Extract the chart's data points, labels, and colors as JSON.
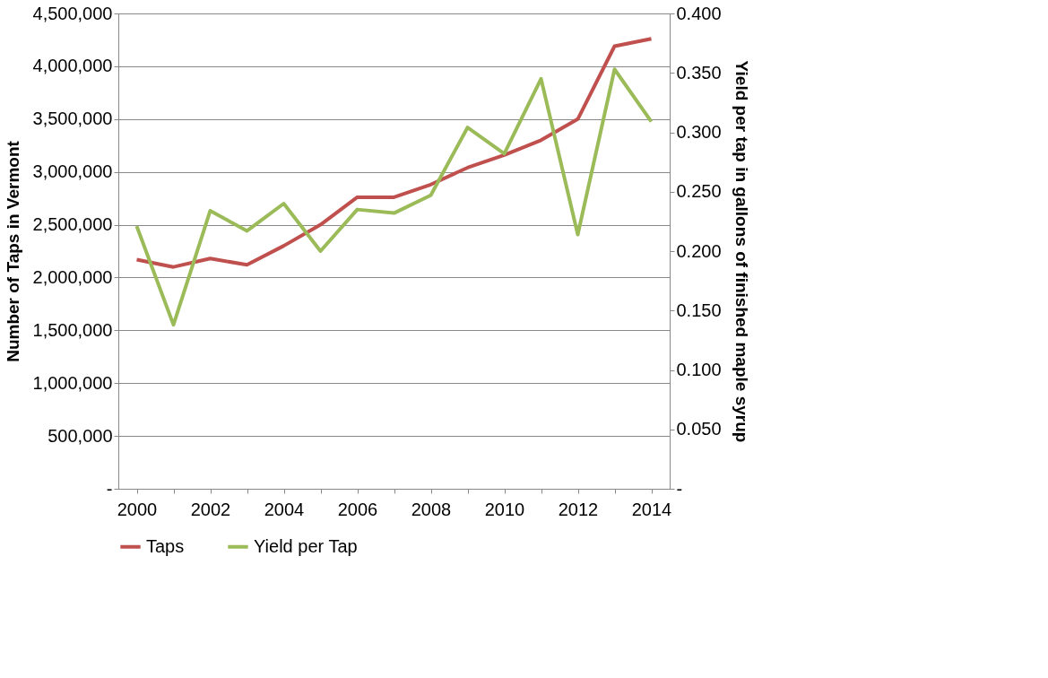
{
  "chart_data": {
    "type": "line",
    "categories": [
      "2000",
      null,
      "2002",
      null,
      "2004",
      null,
      "2006",
      null,
      "2008",
      null,
      "2010",
      null,
      "2012",
      null,
      "2014"
    ],
    "ylabel": "Number of Taps in Vermont",
    "y2label": "Yield per tap in gallons of finished maple syrup",
    "series": [
      {
        "name": "Taps",
        "color": "#c0504d",
        "values": [
          2170000,
          2100000,
          2180000,
          2120000,
          2300000,
          2500000,
          2760000,
          2760000,
          2880000,
          3040000,
          3160000,
          3300000,
          3500000,
          4190000,
          4260000
        ]
      },
      {
        "name": "Yield per Tap",
        "color": "#9bbb59",
        "axis": "y2",
        "values": [
          0.221,
          0.138,
          0.234,
          0.217,
          0.24,
          0.2,
          0.235,
          0.232,
          0.247,
          0.304,
          0.282,
          0.345,
          0.214,
          0.353,
          0.309
        ]
      }
    ],
    "ylim": [
      0,
      4500000
    ],
    "yticks": [
      {
        "value": 0,
        "label": "-"
      },
      {
        "value": 500000,
        "label": "500,000"
      },
      {
        "value": 1000000,
        "label": "1,000,000"
      },
      {
        "value": 1500000,
        "label": "1,500,000"
      },
      {
        "value": 2000000,
        "label": "2,000,000"
      },
      {
        "value": 2500000,
        "label": "2,500,000"
      },
      {
        "value": 3000000,
        "label": "3,000,000"
      },
      {
        "value": 3500000,
        "label": "3,500,000"
      },
      {
        "value": 4000000,
        "label": "4,000,000"
      },
      {
        "value": 4500000,
        "label": "4,500,000"
      }
    ],
    "y2lim": [
      0,
      0.4
    ],
    "y2ticks": [
      {
        "value": 0,
        "label": "-"
      },
      {
        "value": 0.05,
        "label": "0.050"
      },
      {
        "value": 0.1,
        "label": "0.100"
      },
      {
        "value": 0.15,
        "label": "0.150"
      },
      {
        "value": 0.2,
        "label": "0.200"
      },
      {
        "value": 0.25,
        "label": "0.250"
      },
      {
        "value": 0.3,
        "label": "0.300"
      },
      {
        "value": 0.35,
        "label": "0.350"
      },
      {
        "value": 0.4,
        "label": "0.400"
      }
    ],
    "grid": "y",
    "legend": "bottom",
    "line_style": "solid",
    "marker": "none"
  }
}
